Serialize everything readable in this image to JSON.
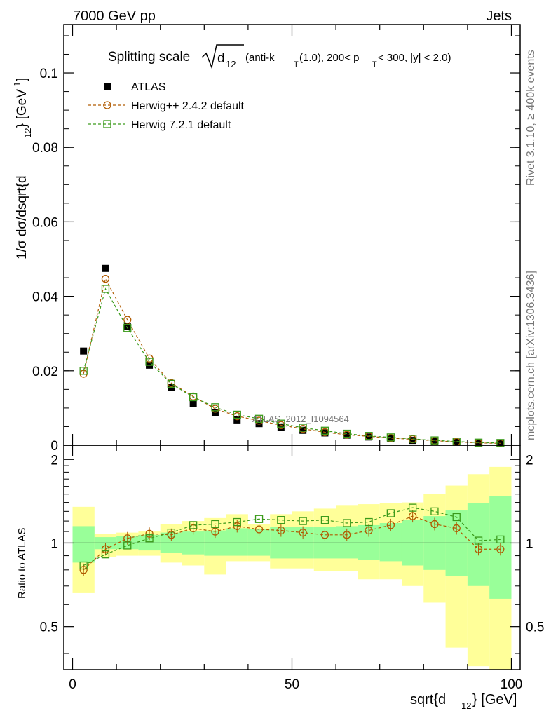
{
  "header": {
    "left": "7000 GeV pp",
    "right": "Jets"
  },
  "side_text": {
    "rivet": "Rivet 3.1.10, ≥ 400k events",
    "mcplots": "mcplots.cern.ch [arXiv:1306.3436]"
  },
  "watermark": "ATLAS_2012_I1094564",
  "chart_data": [
    {
      "type": "scatter",
      "panel": "main",
      "title": "Splitting scale √d12 (anti-kT(1.0), 200< pT < 300, |y| < 2.0)",
      "title_parts": {
        "main": "Splitting scale",
        "d": "d",
        "d_sub": "12",
        "rest1": " (anti-k",
        "rest1_sub": "T",
        "rest2": "(1.0), 200< p",
        "rest2_sub": "T",
        "rest3": " < 300, |y| < 2.0)"
      },
      "ylabel": "1/σ dσ/dsqrt{d12} [GeV⁻¹]",
      "ylabel_parts": {
        "a": "1/σ dσ/dsqrt{d",
        "sub": "12",
        "b": "} [GeV",
        "sup": "-1",
        "c": "]"
      },
      "xlim": [
        -2,
        102
      ],
      "ylim": [
        0,
        0.113
      ],
      "yticks": [
        "0",
        "0.02",
        "0.04",
        "0.06",
        "0.08",
        "0.1"
      ],
      "ytick_values": [
        0,
        0.02,
        0.04,
        0.06,
        0.08,
        0.1
      ],
      "legend": [
        "ATLAS",
        "Herwig++ 2.4.2 default",
        "Herwig 7.2.1 default"
      ],
      "x": [
        2.5,
        7.5,
        12.5,
        17.5,
        22.5,
        27.5,
        32.5,
        37.5,
        42.5,
        47.5,
        52.5,
        57.5,
        62.5,
        67.5,
        72.5,
        77.5,
        82.5,
        87.5,
        92.5,
        97.5
      ],
      "series": [
        {
          "name": "ATLAS",
          "color": "#000000",
          "values": [
            0.0253,
            0.0475,
            0.032,
            0.0215,
            0.0155,
            0.0112,
            0.0088,
            0.0068,
            0.0058,
            0.0048,
            0.004,
            0.0033,
            0.0027,
            0.0022,
            0.0017,
            0.0013,
            0.001,
            0.0008,
            0.0006,
            0.0005
          ]
        },
        {
          "name": "Herwig++ 2.4.2 default",
          "color": "#b05a00",
          "values": [
            0.0192,
            0.0447,
            0.0337,
            0.0233,
            0.0167,
            0.0131,
            0.0098,
            0.0078,
            0.0066,
            0.0054,
            0.0044,
            0.0035,
            0.0028,
            0.0024,
            0.0019,
            0.0016,
            0.0012,
            0.0009,
            0.0006,
            0.0005
          ]
        },
        {
          "name": "Herwig 7.2.1 default",
          "color": "#3a9a1a",
          "values": [
            0.02,
            0.042,
            0.0315,
            0.0224,
            0.0165,
            0.0129,
            0.0102,
            0.0082,
            0.0071,
            0.0058,
            0.0047,
            0.0039,
            0.0031,
            0.0025,
            0.0021,
            0.0017,
            0.0013,
            0.001,
            0.0007,
            0.0006
          ]
        }
      ]
    },
    {
      "type": "scatter",
      "panel": "ratio",
      "ylabel": "Ratio to ATLAS",
      "xlabel": "sqrt{d12} [GeV]",
      "xlabel_parts": {
        "a": "sqrt{d",
        "sub": "12",
        "b": "} [GeV]"
      },
      "xlim": [
        -2,
        102
      ],
      "ylim": [
        0.35,
        2.25
      ],
      "xticks": [
        "0",
        "50",
        "100"
      ],
      "xtick_values": [
        0,
        50,
        100
      ],
      "yticks": [
        "0.5",
        "1",
        "2"
      ],
      "ytick_values": [
        0.5,
        1,
        2
      ],
      "bin_edges": [
        0,
        5,
        10,
        15,
        20,
        25,
        30,
        35,
        40,
        45,
        50,
        55,
        60,
        65,
        70,
        75,
        80,
        85,
        90,
        95,
        100
      ],
      "band_stat": {
        "lo": [
          0.85,
          0.95,
          0.95,
          0.94,
          0.92,
          0.91,
          0.9,
          0.9,
          0.9,
          0.88,
          0.88,
          0.88,
          0.88,
          0.87,
          0.86,
          0.83,
          0.8,
          0.76,
          0.7,
          0.63
        ],
        "hi": [
          1.15,
          1.05,
          1.06,
          1.07,
          1.09,
          1.1,
          1.11,
          1.13,
          1.12,
          1.14,
          1.14,
          1.14,
          1.15,
          1.16,
          1.18,
          1.21,
          1.25,
          1.31,
          1.39,
          1.48
        ]
      },
      "band_total": {
        "lo": [
          0.66,
          0.89,
          0.9,
          0.9,
          0.85,
          0.83,
          0.77,
          0.86,
          0.86,
          0.81,
          0.81,
          0.79,
          0.79,
          0.74,
          0.74,
          0.7,
          0.61,
          0.42,
          0.36,
          0.3
        ],
        "hi": [
          1.35,
          1.08,
          1.09,
          1.1,
          1.17,
          1.2,
          1.23,
          1.27,
          1.17,
          1.27,
          1.3,
          1.33,
          1.37,
          1.38,
          1.39,
          1.4,
          1.5,
          1.61,
          1.77,
          1.88
        ]
      },
      "series": [
        {
          "name": "Herwig++ 2.4.2 default",
          "color": "#b05a00",
          "values": [
            0.8,
            0.95,
            1.04,
            1.08,
            1.07,
            1.13,
            1.1,
            1.15,
            1.12,
            1.11,
            1.09,
            1.07,
            1.07,
            1.11,
            1.16,
            1.25,
            1.17,
            1.13,
            0.95,
            0.95
          ]
        },
        {
          "name": "Herwig 7.2.1 default",
          "color": "#3a9a1a",
          "values": [
            0.83,
            0.91,
            0.98,
            1.04,
            1.09,
            1.16,
            1.17,
            1.19,
            1.22,
            1.21,
            1.2,
            1.21,
            1.18,
            1.19,
            1.28,
            1.34,
            1.3,
            1.24,
            1.02,
            1.03
          ]
        }
      ]
    }
  ]
}
